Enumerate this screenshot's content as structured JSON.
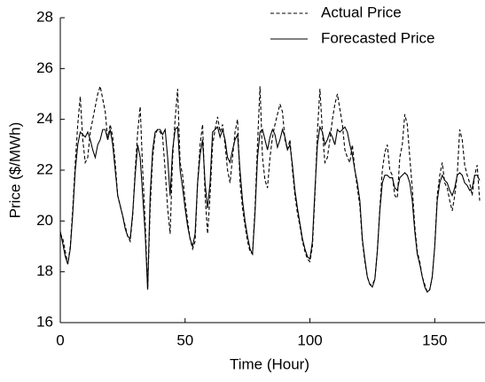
{
  "chart_data": {
    "type": "line",
    "x_label": "Time (Hour)",
    "y_label": "Price ($/MWh)",
    "xlim": [
      0,
      168
    ],
    "xticks": [
      0,
      50,
      100,
      150
    ],
    "ylim": [
      16,
      28
    ],
    "yticks": [
      16,
      18,
      20,
      22,
      24,
      26,
      28
    ],
    "grid": false,
    "legend": "upper right",
    "x": [
      0,
      1,
      2,
      3,
      4,
      5,
      6,
      7,
      8,
      9,
      10,
      11,
      12,
      13,
      14,
      15,
      16,
      17,
      18,
      19,
      20,
      21,
      22,
      23,
      24,
      25,
      26,
      27,
      28,
      29,
      30,
      31,
      32,
      33,
      34,
      35,
      36,
      37,
      38,
      39,
      40,
      41,
      42,
      43,
      44,
      45,
      46,
      47,
      48,
      49,
      50,
      51,
      52,
      53,
      54,
      55,
      56,
      57,
      58,
      59,
      60,
      61,
      62,
      63,
      64,
      65,
      66,
      67,
      68,
      69,
      70,
      71,
      72,
      73,
      74,
      75,
      76,
      77,
      78,
      79,
      80,
      81,
      82,
      83,
      84,
      85,
      86,
      87,
      88,
      89,
      90,
      91,
      92,
      93,
      94,
      95,
      96,
      97,
      98,
      99,
      100,
      101,
      102,
      103,
      104,
      105,
      106,
      107,
      108,
      109,
      110,
      111,
      112,
      113,
      114,
      115,
      116,
      117,
      118,
      119,
      120,
      121,
      122,
      123,
      124,
      125,
      126,
      127,
      128,
      129,
      130,
      131,
      132,
      133,
      134,
      135,
      136,
      137,
      138,
      139,
      140,
      141,
      142,
      143,
      144,
      145,
      146,
      147,
      148,
      149,
      150,
      151,
      152,
      153,
      154,
      155,
      156,
      157,
      158,
      159,
      160,
      161,
      162,
      163,
      164,
      165,
      166,
      167,
      168
    ],
    "series": [
      {
        "name": "Actual Price",
        "color": "#000000",
        "line_style": "dashed",
        "values": [
          19.5,
          19.3,
          18.8,
          18.3,
          19.0,
          20.5,
          22.3,
          23.8,
          24.9,
          23.2,
          22.3,
          22.5,
          23.5,
          24.0,
          24.5,
          25.0,
          25.3,
          24.8,
          24.3,
          23.2,
          23.8,
          23.3,
          22.3,
          21.0,
          20.6,
          20.2,
          19.8,
          19.4,
          19.2,
          20.2,
          22.0,
          23.5,
          24.5,
          22.0,
          20.0,
          17.3,
          20.5,
          22.5,
          23.4,
          23.6,
          23.5,
          23.3,
          22.0,
          20.5,
          19.5,
          22.5,
          24.0,
          25.2,
          22.3,
          21.8,
          20.8,
          20.0,
          19.3,
          18.9,
          19.2,
          21.5,
          23.0,
          23.8,
          21.0,
          19.5,
          21.0,
          23.0,
          23.6,
          24.1,
          23.5,
          23.8,
          23.0,
          22.0,
          21.5,
          22.5,
          23.5,
          24.0,
          21.5,
          20.5,
          19.8,
          19.2,
          18.8,
          18.7,
          20.5,
          23.0,
          25.3,
          22.5,
          21.6,
          21.3,
          22.5,
          23.3,
          23.8,
          24.2,
          24.6,
          24.3,
          23.2,
          22.8,
          23.2,
          22.0,
          21.0,
          20.3,
          19.8,
          19.2,
          18.8,
          18.5,
          18.4,
          19.0,
          21.0,
          23.5,
          25.2,
          23.5,
          22.3,
          22.5,
          23.2,
          24.0,
          24.6,
          25.0,
          24.4,
          23.8,
          22.8,
          22.5,
          22.3,
          23.0,
          22.0,
          21.3,
          20.6,
          19.2,
          18.4,
          17.8,
          17.5,
          17.5,
          17.7,
          18.8,
          20.5,
          22.0,
          22.7,
          23.0,
          22.0,
          21.8,
          21.0,
          20.9,
          22.5,
          23.0,
          24.2,
          23.8,
          22.5,
          21.3,
          19.8,
          18.8,
          18.4,
          17.8,
          17.5,
          17.2,
          17.3,
          17.8,
          19.0,
          21.0,
          21.8,
          22.3,
          21.5,
          21.3,
          20.8,
          20.4,
          21.0,
          21.8,
          23.6,
          23.2,
          22.2,
          21.8,
          21.5,
          21.0,
          21.8,
          22.2,
          20.8
        ]
      },
      {
        "name": "Forecasted Price",
        "color": "#000000",
        "line_style": "solid",
        "values": [
          19.6,
          19.1,
          18.6,
          18.3,
          18.9,
          20.3,
          22.0,
          23.0,
          23.5,
          23.4,
          23.3,
          23.5,
          23.2,
          22.8,
          22.5,
          23.0,
          23.2,
          23.6,
          23.6,
          23.2,
          23.6,
          23.0,
          22.0,
          21.0,
          20.6,
          20.2,
          19.7,
          19.4,
          19.3,
          20.3,
          21.8,
          23.0,
          22.5,
          21.0,
          19.5,
          17.3,
          21.0,
          22.8,
          23.5,
          23.6,
          23.6,
          23.4,
          23.6,
          22.5,
          21.0,
          22.8,
          23.6,
          23.7,
          22.0,
          21.3,
          20.5,
          19.8,
          19.3,
          19.0,
          19.5,
          21.5,
          22.6,
          23.2,
          21.5,
          20.5,
          21.5,
          23.5,
          23.6,
          23.7,
          23.3,
          23.6,
          23.2,
          22.5,
          22.3,
          22.8,
          23.2,
          23.4,
          22.0,
          20.8,
          20.0,
          19.4,
          18.9,
          18.7,
          20.3,
          22.5,
          23.5,
          23.6,
          23.2,
          22.8,
          23.3,
          23.6,
          23.4,
          22.9,
          23.2,
          23.6,
          23.3,
          22.8,
          23.0,
          22.2,
          21.2,
          20.5,
          19.9,
          19.3,
          18.9,
          18.6,
          18.5,
          19.2,
          21.2,
          23.0,
          23.7,
          23.5,
          23.0,
          23.2,
          23.5,
          23.3,
          23.0,
          23.6,
          23.5,
          23.6,
          23.7,
          23.5,
          23.0,
          22.6,
          22.0,
          21.5,
          20.8,
          19.3,
          18.5,
          17.8,
          17.5,
          17.4,
          17.7,
          18.8,
          20.4,
          21.5,
          21.8,
          21.8,
          21.7,
          21.7,
          21.3,
          21.2,
          21.7,
          21.8,
          21.9,
          21.8,
          21.5,
          20.8,
          19.6,
          18.7,
          18.3,
          17.8,
          17.4,
          17.2,
          17.3,
          17.8,
          19.0,
          20.8,
          21.5,
          21.8,
          21.6,
          21.5,
          21.2,
          21.0,
          21.3,
          21.8,
          21.9,
          21.8,
          21.5,
          21.4,
          21.2,
          21.3,
          21.8,
          21.8,
          21.6
        ]
      }
    ]
  }
}
